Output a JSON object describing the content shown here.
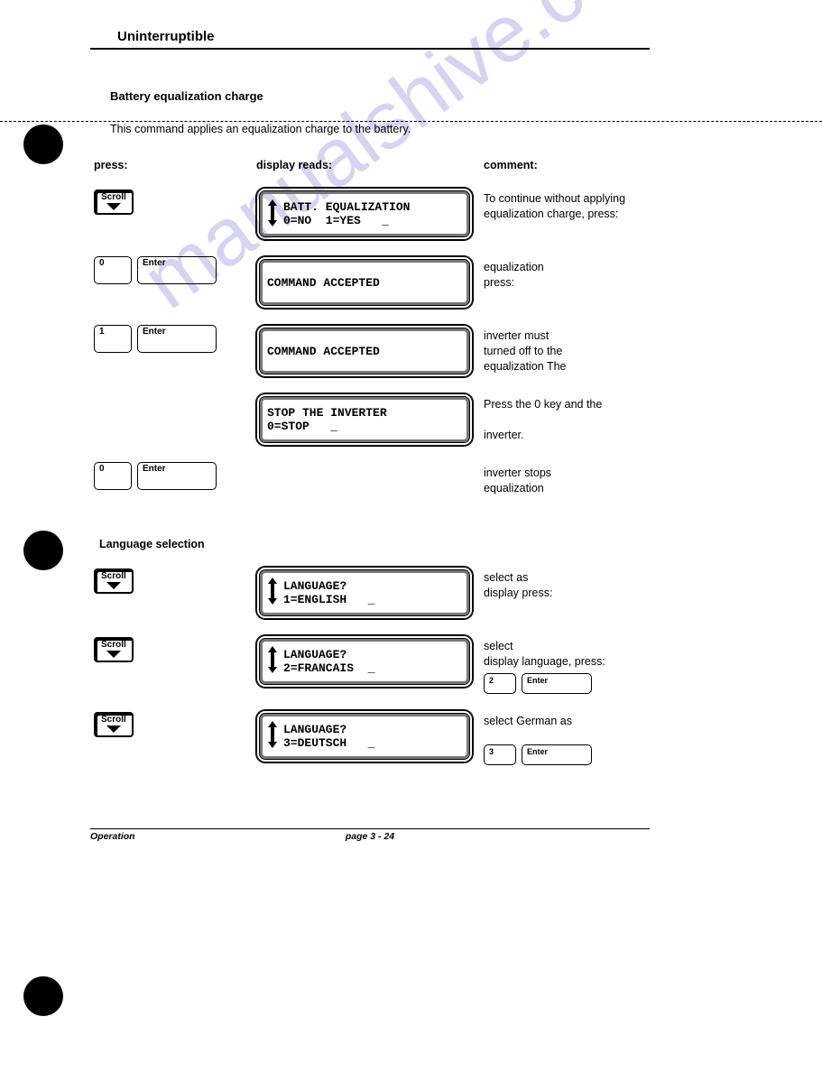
{
  "watermark": "manualshive.com",
  "header": {
    "title": "Uninterruptible"
  },
  "subtitle": "Battery equalization charge",
  "intro": "This command applies an equalization charge to the battery.",
  "columns": {
    "press": "press:",
    "display": "display reads:",
    "comment": "comment:"
  },
  "section2_title": "Language selection",
  "keys": {
    "scroll": "Scroll",
    "enter": "Enter",
    "zero": "0",
    "one": "1",
    "two": "2",
    "three": "3"
  },
  "rows": [
    {
      "press_type": "scroll",
      "lcd_arrow": true,
      "lcd_line1": "BATT. EQUALIZATION",
      "lcd_line2": "0=NO  1=YES   _",
      "comment": "To continue without applying equalization charge, press:"
    },
    {
      "press_type": "0 enter",
      "lcd_arrow": false,
      "lcd_line1": "COMMAND ACCEPTED",
      "lcd_line2": "",
      "comment": "equalization\npress:"
    },
    {
      "press_type": "1 enter",
      "lcd_arrow": false,
      "lcd_line1": "COMMAND ACCEPTED",
      "lcd_line2": "",
      "comment": "inverter must\nturned off to          the\nequalization            The"
    },
    {
      "press_type": "",
      "lcd_arrow": false,
      "lcd_line1": "STOP THE INVERTER",
      "lcd_line2": "0=STOP   _",
      "comment": "Press the 0 key and the\n\ninverter."
    },
    {
      "press_type": "0 enter",
      "lcd_arrow": false,
      "lcd_line1": "",
      "lcd_line2": "",
      "no_lcd": true,
      "comment": "inverter stops\n       equalization"
    }
  ],
  "rows2": [
    {
      "lcd_line1": "LANGUAGE?",
      "lcd_line2": "1=ENGLISH   _",
      "comment": "      select            as\ndisplay              press:",
      "mini_keys": null
    },
    {
      "lcd_line1": "LANGUAGE?",
      "lcd_line2": "2=FRANCAIS  _",
      "comment": "      select\ndisplay language, press:",
      "mini_keys": [
        "2",
        "Enter"
      ]
    },
    {
      "lcd_line1": "LANGUAGE?",
      "lcd_line2": "3=DEUTSCH   _",
      "comment": "   select German as",
      "mini_keys": [
        "3",
        "Enter"
      ],
      "mini_keys_gap": true
    }
  ],
  "footer": {
    "left": "Operation",
    "center": "page 3 - 24"
  },
  "colors": {
    "text": "#000000",
    "wm": "#b8b0e8",
    "bg": "#ffffff"
  }
}
